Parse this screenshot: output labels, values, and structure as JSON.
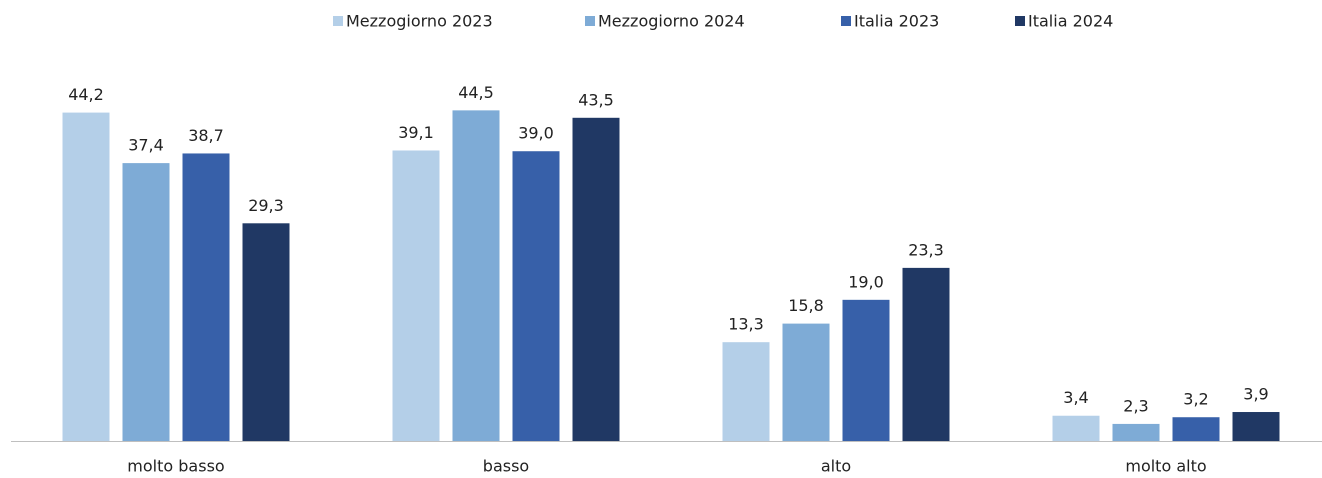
{
  "chart_data": {
    "type": "bar",
    "categories": [
      "molto basso",
      "basso",
      "alto",
      "molto alto"
    ],
    "series": [
      {
        "name": "Mezzogiorno 2023",
        "color": "#b4cfe8",
        "values": [
          44.2,
          39.1,
          13.3,
          3.4
        ],
        "value_labels": [
          "44,2",
          "39,1",
          "13,3",
          "3,4"
        ]
      },
      {
        "name": "Mezzogiorno 2024",
        "color": "#7eabd6",
        "values": [
          37.4,
          44.5,
          15.8,
          2.3
        ],
        "value_labels": [
          "37,4",
          "44,5",
          "15,8",
          "2,3"
        ]
      },
      {
        "name": "Italia 2023",
        "color": "#3760a9",
        "values": [
          38.7,
          39.0,
          19.0,
          3.2
        ],
        "value_labels": [
          "38,7",
          "39,0",
          "19,0",
          "3,2"
        ]
      },
      {
        "name": "Italia 2024",
        "color": "#203864",
        "values": [
          29.3,
          43.5,
          23.3,
          3.9
        ],
        "value_labels": [
          "29,3",
          "43,5",
          "23,3",
          "3,9"
        ]
      }
    ],
    "legend": "top"
  }
}
